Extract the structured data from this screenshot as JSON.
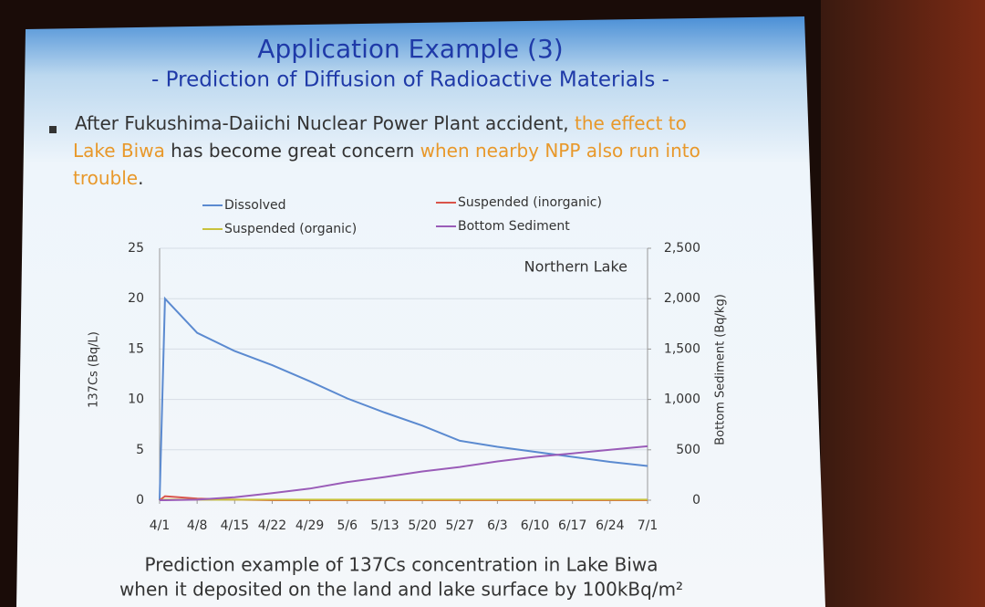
{
  "slide": {
    "title": "Application Example (3)",
    "subtitle": "- Prediction of Diffusion of Radioactive Materials -",
    "bullet": [
      "After Fukushima-Daiichi Nuclear Power Plant accident, ",
      "the effect to",
      "Lake Biwa",
      " has become great concern ",
      "when nearby NPP also run into",
      "trouble",
      "."
    ],
    "caption": [
      "Prediction example of 137Cs concentration in Lake Biwa",
      "when it deposited on the land and lake surface by 100kBq/m²"
    ]
  },
  "chart_data": {
    "type": "line",
    "annotation": "Northern Lake",
    "ylabel": "137Cs (Bq/L)",
    "y2label": "Bottom Sediment (Bq/kg)",
    "x": [
      0,
      1,
      7,
      14,
      21,
      28,
      35,
      42,
      49,
      56,
      63,
      70,
      77,
      84,
      91
    ],
    "xlim": [
      0,
      91
    ],
    "xticks": [
      {
        "value": 0,
        "label": "4/1"
      },
      {
        "value": 7,
        "label": "4/8"
      },
      {
        "value": 14,
        "label": "4/15"
      },
      {
        "value": 21,
        "label": "4/22"
      },
      {
        "value": 28,
        "label": "4/29"
      },
      {
        "value": 35,
        "label": "5/6"
      },
      {
        "value": 42,
        "label": "5/13"
      },
      {
        "value": 49,
        "label": "5/20"
      },
      {
        "value": 56,
        "label": "5/27"
      },
      {
        "value": 63,
        "label": "6/3"
      },
      {
        "value": 70,
        "label": "6/10"
      },
      {
        "value": 77,
        "label": "6/17"
      },
      {
        "value": 84,
        "label": "6/24"
      },
      {
        "value": 91,
        "label": "7/1"
      }
    ],
    "ylim": [
      0,
      25
    ],
    "yticks": [
      0,
      5,
      10,
      15,
      20,
      25
    ],
    "y2lim": [
      0,
      2500
    ],
    "y2ticks": [
      0,
      500,
      {
        "value": 1000,
        "label": "1,000"
      },
      {
        "value": 1500,
        "label": "1,500"
      },
      {
        "value": 2000,
        "label": "2,000"
      },
      {
        "value": 2500,
        "label": "2,500"
      }
    ],
    "grid": true,
    "legend": "top",
    "series": [
      {
        "name": "Dissolved",
        "color": "#5b8ad0",
        "values": [
          0,
          20,
          16.6,
          14.8,
          13.4,
          11.8,
          10.1,
          8.7,
          7.4,
          5.9,
          5.3,
          4.8,
          4.3,
          3.8,
          3.4
        ]
      },
      {
        "name": "Suspended (inorganic)",
        "color": "#d9544a",
        "values": [
          0,
          0.4,
          0.15,
          0.05,
          0,
          0,
          0,
          0,
          0,
          0,
          0,
          0,
          0,
          0,
          0
        ]
      },
      {
        "name": "Suspended (organic)",
        "color": "#c9c23c",
        "values": [
          0,
          0.05,
          0.05,
          0.05,
          0.05,
          0.05,
          0.05,
          0.05,
          0.05,
          0.05,
          0.05,
          0.05,
          0.05,
          0.05,
          0.05
        ]
      },
      {
        "name": "Bottom Sediment",
        "color": "#9a5cb8",
        "axis": "y2",
        "values": [
          0,
          0,
          5,
          30,
          70,
          115,
          180,
          230,
          285,
          330,
          385,
          430,
          465,
          500,
          535
        ]
      }
    ]
  }
}
